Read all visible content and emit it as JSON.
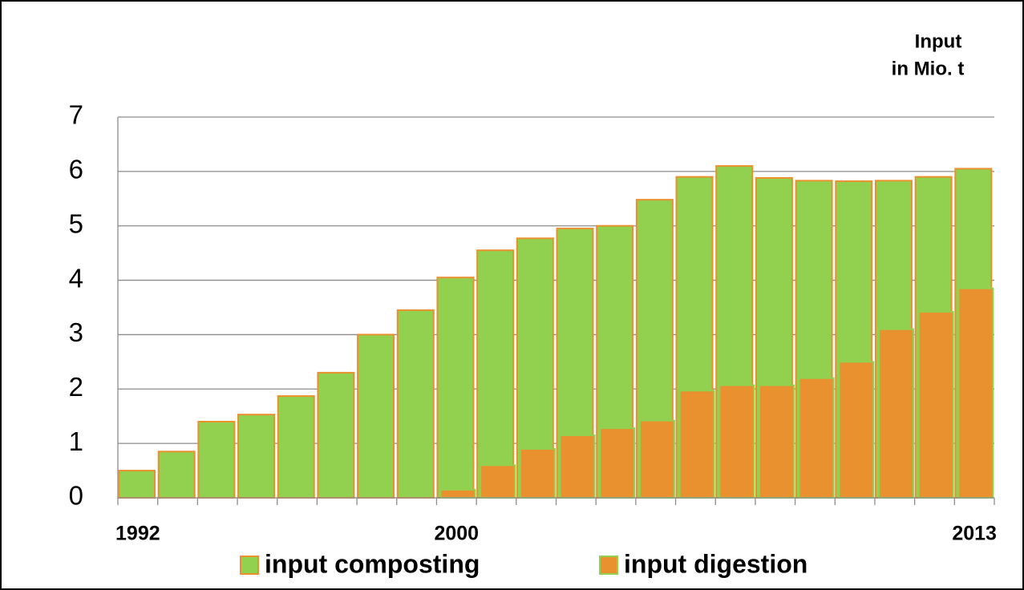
{
  "chart_data": {
    "type": "bar",
    "ylabel": [
      "Input",
      "in Mio. t"
    ],
    "categories": [
      "1992",
      null,
      null,
      null,
      null,
      null,
      null,
      null,
      "2000",
      null,
      null,
      null,
      null,
      null,
      null,
      null,
      null,
      null,
      null,
      null,
      null,
      "2013"
    ],
    "series": [
      {
        "name": "input composting",
        "color": "#92d050",
        "edgecolor": "#e8912e",
        "values": [
          0.5,
          0.85,
          1.4,
          1.53,
          1.87,
          2.3,
          3.0,
          3.45,
          4.05,
          4.55,
          4.77,
          4.95,
          5.0,
          5.48,
          5.9,
          6.1,
          5.88,
          5.83,
          5.82,
          5.83,
          5.9,
          6.05
        ]
      },
      {
        "name": "input digestion",
        "color": "#e8912e",
        "edgecolor": "#92d050",
        "values": [
          null,
          null,
          null,
          null,
          null,
          null,
          null,
          null,
          0.15,
          0.6,
          0.9,
          1.15,
          1.28,
          1.42,
          1.97,
          2.07,
          2.07,
          2.2,
          2.5,
          3.1,
          3.42,
          3.85
        ]
      }
    ],
    "ylim": [
      0,
      7
    ],
    "yticks": [
      0,
      1,
      2,
      3,
      4,
      5,
      6,
      7
    ],
    "grid": true,
    "legend": "bottom"
  }
}
